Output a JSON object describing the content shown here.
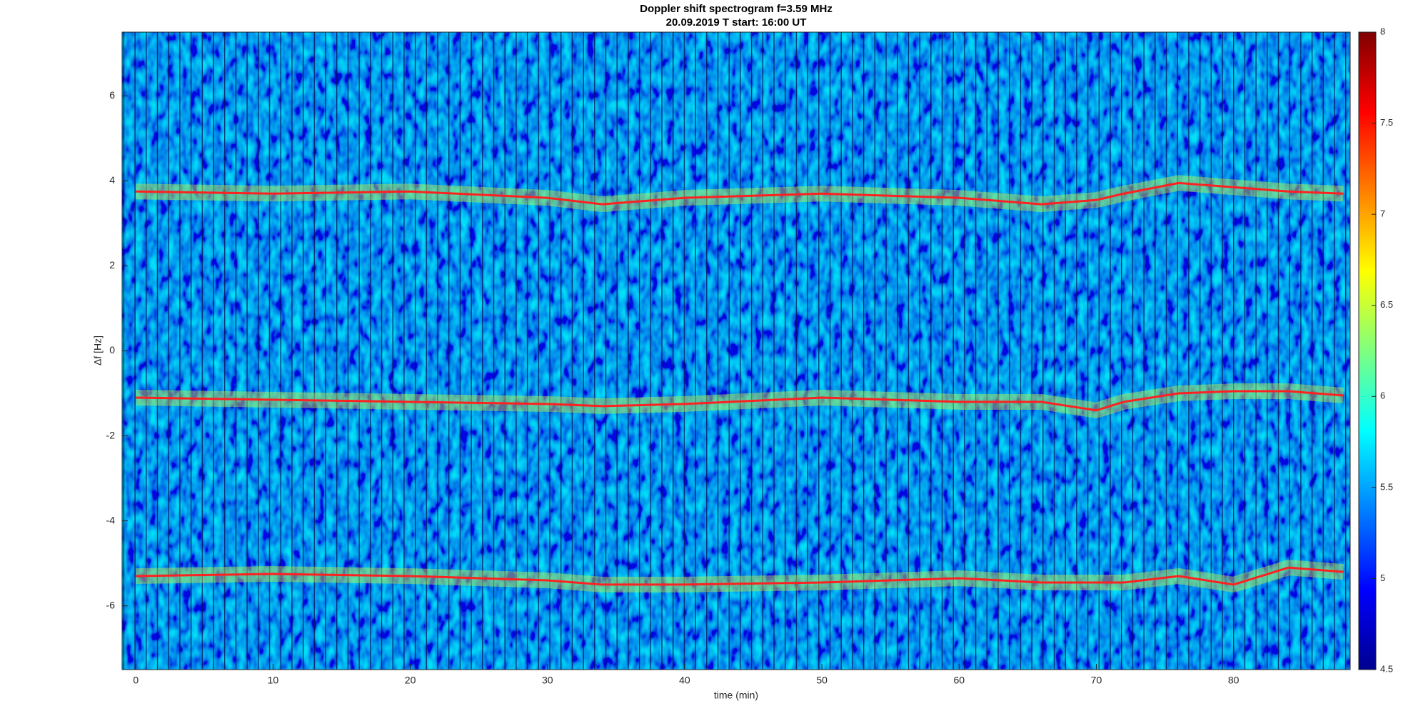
{
  "chart_data": {
    "type": "spectrogram",
    "title": "Doppler shift spectrogram f=3.59 MHz",
    "subtitle": "20.09.2019   T start: 16:00 UT",
    "xlabel": "time (min)",
    "ylabel": "Δf [Hz]",
    "x": [
      0,
      10,
      20,
      30,
      34,
      40,
      50,
      60,
      66,
      70,
      72,
      76,
      80,
      84,
      88
    ],
    "series": [
      {
        "color": "#ff2020",
        "values": [
          3.75,
          3.7,
          3.75,
          3.6,
          3.45,
          3.6,
          3.7,
          3.6,
          3.45,
          3.55,
          3.7,
          3.95,
          3.85,
          3.75,
          3.7
        ]
      },
      {
        "color": "#ff2020",
        "values": [
          -1.1,
          -1.15,
          -1.2,
          -1.25,
          -1.3,
          -1.25,
          -1.1,
          -1.2,
          -1.2,
          -1.4,
          -1.2,
          -1.0,
          -0.95,
          -0.95,
          -1.05
        ]
      },
      {
        "color": "#ff2020",
        "values": [
          -5.3,
          -5.25,
          -5.3,
          -5.4,
          -5.5,
          -5.5,
          -5.45,
          -5.35,
          -5.45,
          -5.45,
          -5.45,
          -5.3,
          -5.5,
          -5.1,
          -5.2
        ]
      }
    ],
    "xlim": [
      -1,
      88.5
    ],
    "xticks": [
      0,
      10,
      20,
      30,
      40,
      50,
      60,
      70,
      80
    ],
    "ylim": [
      -7.5,
      7.5
    ],
    "yticks": [
      -6,
      -4,
      -2,
      0,
      2,
      4,
      6
    ],
    "colorbar": {
      "lim": [
        4.5,
        8
      ],
      "ticks": [
        4.5,
        5,
        5.5,
        6,
        6.5,
        7,
        7.5,
        8
      ]
    }
  }
}
